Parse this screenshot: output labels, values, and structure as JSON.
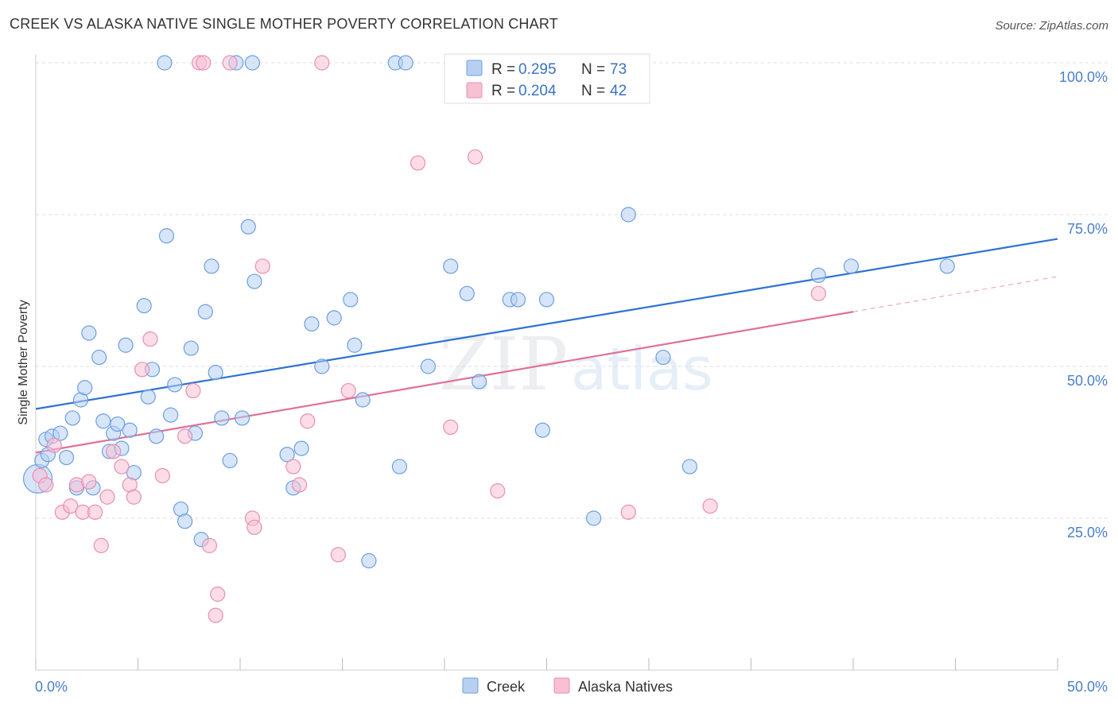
{
  "header": {
    "title": "CREEK VS ALASKA NATIVE SINGLE MOTHER POVERTY CORRELATION CHART",
    "source": "Source: ZipAtlas.com"
  },
  "watermark": {
    "zip": "ZIP",
    "atlas": "atlas"
  },
  "legend": {
    "r_label": "R =",
    "n_label": "N =",
    "entries": [
      {
        "r": "0.295",
        "n": "73"
      },
      {
        "r": "0.204",
        "n": "42"
      }
    ]
  },
  "colors": {
    "creek_fill": "#b7d0f2",
    "creek_stroke": "#6b9fe0",
    "creek_line": "#2e72d2",
    "alaska_fill": "#f7c0d3",
    "alaska_stroke": "#e88fb0",
    "alaska_line": "#e07099"
  },
  "chart_data": {
    "type": "scatter",
    "title": "CREEK VS ALASKA NATIVE SINGLE MOTHER POVERTY CORRELATION CHART",
    "xlabel": "",
    "ylabel": "Single Mother Poverty",
    "xlim": [
      0,
      50
    ],
    "ylim": [
      0,
      100
    ],
    "x_tick_labels": [
      "0.0%",
      "50.0%"
    ],
    "y_ticks": [
      25,
      50,
      75,
      100
    ],
    "y_tick_labels": [
      "25.0%",
      "50.0%",
      "75.0%",
      "100.0%"
    ],
    "series": [
      {
        "name": "Creek",
        "r": 0.295,
        "n": 73,
        "trend": {
          "x": [
            0,
            50
          ],
          "y": [
            43.0,
            71.0
          ],
          "solid_until": 50
        },
        "points": [
          [
            0.1,
            31.5
          ],
          [
            0.3,
            34.5
          ],
          [
            0.5,
            38
          ],
          [
            0.6,
            35.5
          ],
          [
            0.8,
            38.5
          ],
          [
            1.2,
            39
          ],
          [
            1.5,
            35
          ],
          [
            1.8,
            41.5
          ],
          [
            2.0,
            30
          ],
          [
            2.2,
            44.5
          ],
          [
            2.4,
            46.5
          ],
          [
            2.6,
            55.5
          ],
          [
            2.8,
            30
          ],
          [
            3.1,
            51.5
          ],
          [
            3.3,
            41
          ],
          [
            3.6,
            36
          ],
          [
            3.8,
            39
          ],
          [
            4.0,
            40.5
          ],
          [
            4.2,
            36.5
          ],
          [
            4.4,
            53.5
          ],
          [
            4.6,
            39.5
          ],
          [
            4.8,
            32.5
          ],
          [
            5.3,
            60
          ],
          [
            5.5,
            45
          ],
          [
            5.7,
            49.5
          ],
          [
            5.9,
            38.5
          ],
          [
            6.4,
            71.5
          ],
          [
            6.6,
            42
          ],
          [
            6.8,
            47
          ],
          [
            7.1,
            26.5
          ],
          [
            7.3,
            24.5
          ],
          [
            7.6,
            53
          ],
          [
            7.8,
            39
          ],
          [
            8.1,
            21.5
          ],
          [
            8.3,
            59
          ],
          [
            8.6,
            66.5
          ],
          [
            8.8,
            49
          ],
          [
            9.1,
            41.5
          ],
          [
            9.5,
            34.5
          ],
          [
            10.1,
            41.5
          ],
          [
            10.4,
            73
          ],
          [
            10.7,
            64
          ],
          [
            12.3,
            35.5
          ],
          [
            12.6,
            30
          ],
          [
            13.0,
            36.5
          ],
          [
            13.5,
            57
          ],
          [
            14.0,
            50
          ],
          [
            14.6,
            58
          ],
          [
            15.4,
            61
          ],
          [
            15.6,
            53.5
          ],
          [
            16.0,
            44.5
          ],
          [
            16.3,
            18
          ],
          [
            17.8,
            33.5
          ],
          [
            19.2,
            50
          ],
          [
            20.3,
            66.5
          ],
          [
            21.1,
            62
          ],
          [
            21.7,
            47.5
          ],
          [
            23.2,
            61
          ],
          [
            23.6,
            61
          ],
          [
            24.8,
            39.5
          ],
          [
            25.0,
            61
          ],
          [
            27.3,
            25
          ],
          [
            29.0,
            75
          ],
          [
            30.7,
            51.5
          ],
          [
            32.0,
            33.5
          ],
          [
            38.3,
            65
          ],
          [
            39.9,
            66.5
          ],
          [
            44.6,
            66.5
          ],
          [
            6.3,
            100
          ],
          [
            9.8,
            100
          ],
          [
            10.6,
            100
          ],
          [
            17.6,
            100
          ],
          [
            18.1,
            100
          ]
        ]
      },
      {
        "name": "Alaska Natives",
        "r": 0.204,
        "n": 42,
        "trend": {
          "x": [
            0,
            50
          ],
          "y": [
            35.8,
            64.8
          ],
          "solid_until": 40
        },
        "points": [
          [
            0.2,
            32
          ],
          [
            0.5,
            30.5
          ],
          [
            0.9,
            37
          ],
          [
            1.3,
            26
          ],
          [
            1.7,
            27
          ],
          [
            2.0,
            30.5
          ],
          [
            2.3,
            26
          ],
          [
            2.6,
            31
          ],
          [
            2.9,
            26
          ],
          [
            3.2,
            20.5
          ],
          [
            3.5,
            28.5
          ],
          [
            3.8,
            36
          ],
          [
            4.2,
            33.5
          ],
          [
            4.6,
            30.5
          ],
          [
            4.8,
            28.5
          ],
          [
            5.2,
            49.5
          ],
          [
            5.6,
            54.5
          ],
          [
            6.2,
            32
          ],
          [
            7.3,
            38.5
          ],
          [
            7.7,
            46
          ],
          [
            8.5,
            20.5
          ],
          [
            8.9,
            12.5
          ],
          [
            8.8,
            9
          ],
          [
            10.6,
            25
          ],
          [
            10.7,
            23.5
          ],
          [
            11.1,
            66.5
          ],
          [
            12.6,
            33.5
          ],
          [
            12.9,
            30.5
          ],
          [
            13.3,
            41
          ],
          [
            14.8,
            19
          ],
          [
            15.3,
            46
          ],
          [
            18.7,
            83.5
          ],
          [
            20.3,
            40
          ],
          [
            21.5,
            84.5
          ],
          [
            22.6,
            29.5
          ],
          [
            29.0,
            26
          ],
          [
            33.0,
            27
          ],
          [
            38.3,
            62
          ],
          [
            8.0,
            100
          ],
          [
            8.2,
            100
          ],
          [
            9.5,
            100
          ],
          [
            14.0,
            100
          ]
        ]
      }
    ]
  }
}
